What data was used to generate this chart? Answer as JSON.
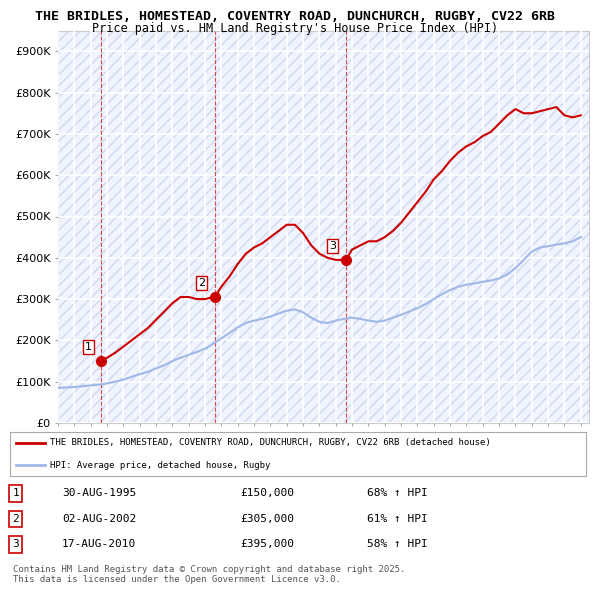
{
  "title_line1": "THE BRIDLES, HOMESTEAD, COVENTRY ROAD, DUNCHURCH, RUGBY, CV22 6RB",
  "title_line2": "Price paid vs. HM Land Registry's House Price Index (HPI)",
  "ylabel": "",
  "ylim": [
    0,
    950000
  ],
  "yticks": [
    0,
    100000,
    200000,
    300000,
    400000,
    500000,
    600000,
    700000,
    800000,
    900000
  ],
  "ytick_labels": [
    "£0",
    "£100K",
    "£200K",
    "£300K",
    "£400K",
    "£500K",
    "£600K",
    "£700K",
    "£800K",
    "£900K"
  ],
  "background_color": "#ffffff",
  "plot_bg_color": "#f0f4ff",
  "grid_color": "#ffffff",
  "hpi_color": "#a0b8e8",
  "price_color": "#cc0000",
  "sale_marker_color": "#cc0000",
  "legend_label_price": "THE BRIDLES, HOMESTEAD, COVENTRY ROAD, DUNCHURCH, RUGBY, CV22 6RB (detached house)",
  "legend_label_hpi": "HPI: Average price, detached house, Rugby",
  "sales": [
    {
      "num": 1,
      "date": "30-AUG-1995",
      "price": 150000,
      "hpi_pct": "68% ↑ HPI",
      "year": 1995.66
    },
    {
      "num": 2,
      "date": "02-AUG-2002",
      "price": 305000,
      "hpi_pct": "61% ↑ HPI",
      "year": 2002.58
    },
    {
      "num": 3,
      "date": "17-AUG-2010",
      "price": 395000,
      "hpi_pct": "58% ↑ HPI",
      "year": 2010.62
    }
  ],
  "footnote": "Contains HM Land Registry data © Crown copyright and database right 2025.\nThis data is licensed under the Open Government Licence v3.0.",
  "hpi_data_x": [
    1993,
    1993.5,
    1994,
    1994.5,
    1995,
    1995.5,
    1996,
    1996.5,
    1997,
    1997.5,
    1998,
    1998.5,
    1999,
    1999.5,
    2000,
    2000.5,
    2001,
    2001.5,
    2002,
    2002.5,
    2003,
    2003.5,
    2004,
    2004.5,
    2005,
    2005.5,
    2006,
    2006.5,
    2007,
    2007.5,
    2008,
    2008.5,
    2009,
    2009.5,
    2010,
    2010.5,
    2011,
    2011.5,
    2012,
    2012.5,
    2013,
    2013.5,
    2014,
    2014.5,
    2015,
    2015.5,
    2016,
    2016.5,
    2017,
    2017.5,
    2018,
    2018.5,
    2019,
    2019.5,
    2020,
    2020.5,
    2021,
    2021.5,
    2022,
    2022.5,
    2023,
    2023.5,
    2024,
    2024.5,
    2025
  ],
  "hpi_data_y": [
    85000,
    86000,
    87000,
    89000,
    91000,
    93000,
    96000,
    100000,
    105000,
    112000,
    118000,
    124000,
    132000,
    140000,
    150000,
    158000,
    165000,
    172000,
    180000,
    192000,
    205000,
    218000,
    232000,
    242000,
    248000,
    252000,
    258000,
    265000,
    272000,
    275000,
    268000,
    255000,
    245000,
    242000,
    248000,
    252000,
    255000,
    252000,
    248000,
    245000,
    248000,
    255000,
    262000,
    270000,
    278000,
    288000,
    300000,
    312000,
    322000,
    330000,
    335000,
    338000,
    342000,
    345000,
    350000,
    360000,
    375000,
    395000,
    415000,
    425000,
    428000,
    432000,
    435000,
    440000,
    450000
  ],
  "price_data_x": [
    1993,
    1993.5,
    1994,
    1994.5,
    1995,
    1995.5,
    1995.66,
    1996,
    1996.5,
    1997,
    1997.5,
    1998,
    1998.5,
    1999,
    1999.5,
    2000,
    2000.5,
    2001,
    2001.5,
    2002,
    2002.5,
    2002.58,
    2003,
    2003.5,
    2004,
    2004.5,
    2005,
    2005.5,
    2006,
    2006.5,
    2007,
    2007.5,
    2008,
    2008.5,
    2009,
    2009.5,
    2010,
    2010.5,
    2010.62,
    2011,
    2011.5,
    2012,
    2012.5,
    2013,
    2013.5,
    2014,
    2014.5,
    2015,
    2015.5,
    2016,
    2016.5,
    2017,
    2017.5,
    2018,
    2018.5,
    2019,
    2019.5,
    2020,
    2020.5,
    2021,
    2021.5,
    2022,
    2022.5,
    2023,
    2023.5,
    2024,
    2024.5,
    2025
  ],
  "price_data_y": [
    null,
    null,
    null,
    null,
    null,
    null,
    150000,
    158000,
    170000,
    185000,
    200000,
    215000,
    230000,
    250000,
    270000,
    290000,
    305000,
    305000,
    300000,
    300000,
    305000,
    305000,
    330000,
    355000,
    385000,
    410000,
    425000,
    435000,
    450000,
    465000,
    480000,
    480000,
    460000,
    430000,
    410000,
    400000,
    395000,
    395000,
    395000,
    420000,
    430000,
    440000,
    440000,
    450000,
    465000,
    485000,
    510000,
    535000,
    560000,
    590000,
    610000,
    635000,
    655000,
    670000,
    680000,
    695000,
    705000,
    725000,
    745000,
    760000,
    750000,
    750000,
    755000,
    760000,
    765000,
    745000,
    740000,
    745000
  ]
}
